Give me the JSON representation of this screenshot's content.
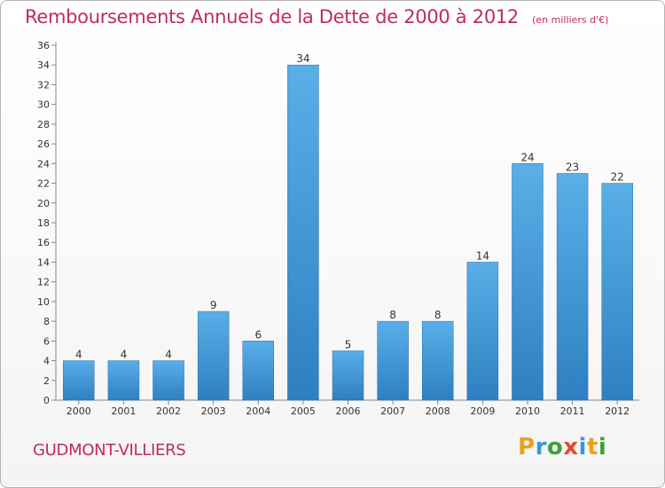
{
  "header": {
    "title": "Remboursements Annuels de la Dette de 2000 à 2012",
    "subtitle": "(en milliers d'€)"
  },
  "footer": {
    "commune": "GUDMONT-VILLIERS",
    "logo_text": "Proxiti"
  },
  "colors": {
    "bar": "#4a9fdc",
    "title": "#c02a64"
  },
  "chart_data": {
    "type": "bar",
    "title": "Remboursements Annuels de la Dette de 2000 à 2012",
    "subtitle": "(en milliers d'€)",
    "categories": [
      "2000",
      "2001",
      "2002",
      "2003",
      "2004",
      "2005",
      "2006",
      "2007",
      "2008",
      "2009",
      "2010",
      "2011",
      "2012"
    ],
    "values": [
      4,
      4,
      4,
      9,
      6,
      34,
      5,
      8,
      8,
      14,
      24,
      23,
      22
    ],
    "data_labels": [
      "4",
      "4",
      "4",
      "9",
      "6",
      "34",
      "5",
      "8",
      "8",
      "14",
      "24",
      "23",
      "22"
    ],
    "yticks": [
      "0",
      "2",
      "4",
      "6",
      "8",
      "10",
      "12",
      "14",
      "16",
      "18",
      "20",
      "22",
      "24",
      "26",
      "28",
      "30",
      "32",
      "34",
      "36"
    ],
    "ylim": [
      0,
      36
    ],
    "grid": false,
    "legend": "none"
  }
}
